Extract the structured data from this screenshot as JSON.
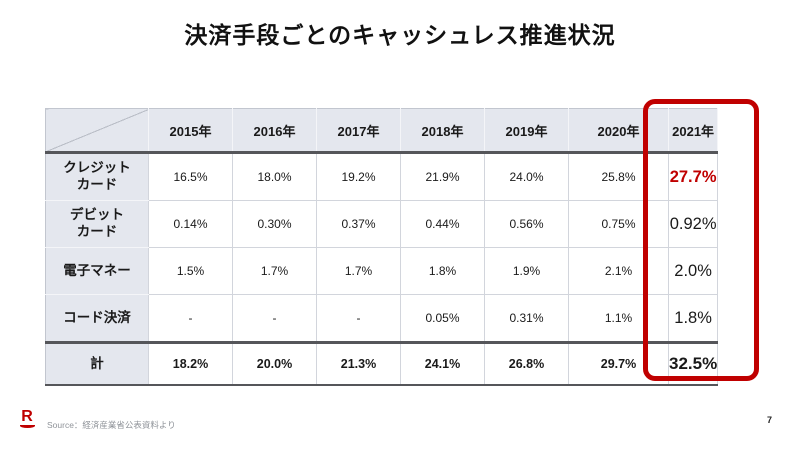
{
  "slide": {
    "title": "決済手段ごとのキャッシュレス推進状況",
    "page_number": "7",
    "source": "Source：経済産業省公表資料より",
    "logo_icon": "rakuten-r-logo",
    "logo_letter": "R"
  },
  "table": {
    "col_headers": [
      "2015年",
      "2016年",
      "2017年",
      "2018年",
      "2019年",
      "2020年",
      "2021年"
    ],
    "highlight_col_index": 6,
    "rows": [
      {
        "label": "クレジット\nカード",
        "values": [
          "16.5%",
          "18.0%",
          "19.2%",
          "21.9%",
          "24.0%",
          "25.8%",
          "27.7%"
        ],
        "emphasis_last": "red"
      },
      {
        "label": "デビット\nカード",
        "values": [
          "0.14%",
          "0.30%",
          "0.37%",
          "0.44%",
          "0.56%",
          "0.75%",
          "0.92%"
        ],
        "emphasis_last": "none"
      },
      {
        "label": "電子マネー",
        "values": [
          "1.5%",
          "1.7%",
          "1.7%",
          "1.8%",
          "1.9%",
          "2.1%",
          "2.0%"
        ],
        "emphasis_last": "none"
      },
      {
        "label": "コード決済",
        "values": [
          "-",
          "-",
          "-",
          "0.05%",
          "0.31%",
          "1.1%",
          "1.8%"
        ],
        "emphasis_last": "none"
      }
    ],
    "total_row": {
      "label": "計",
      "values": [
        "18.2%",
        "20.0%",
        "21.3%",
        "24.1%",
        "26.8%",
        "29.7%",
        "32.5%"
      ]
    },
    "layout": {
      "label_col_width": 103,
      "year_col_width": 84,
      "last_col_width": 100
    }
  },
  "colors": {
    "accent_red": "#c00000",
    "logo_red": "#bf0000",
    "header_bg": "#e4e7ee",
    "dark_rule": "#55565a",
    "light_rule": "#d2d5dc",
    "title_text": "#111111",
    "source_text": "#8f9399"
  }
}
